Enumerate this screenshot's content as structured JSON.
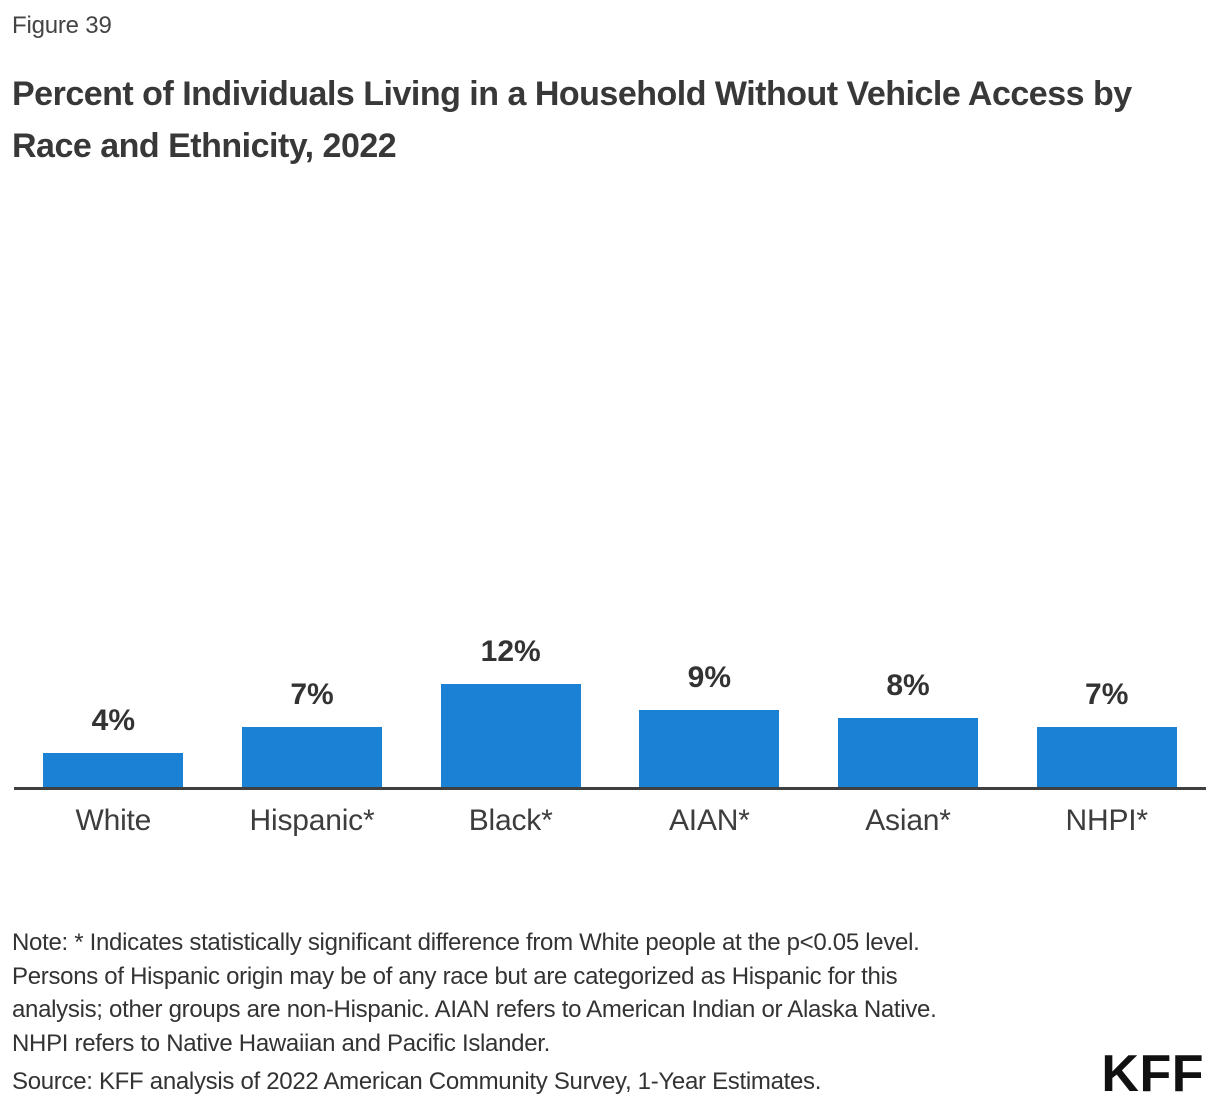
{
  "figure_label": "Figure 39",
  "title": "Percent of Individuals Living in a Household Without Vehicle Access by Race and Ethnicity, 2022",
  "chart_data": {
    "type": "bar",
    "categories": [
      "White",
      "Hispanic*",
      "Black*",
      "AIAN*",
      "Asian*",
      "NHPI*"
    ],
    "values": [
      4,
      7,
      12,
      9,
      8,
      7
    ],
    "value_labels": [
      "4%",
      "7%",
      "12%",
      "9%",
      "8%",
      "7%"
    ],
    "title": "Percent of Individuals Living in a Household Without Vehicle Access by Race and Ethnicity, 2022",
    "xlabel": "",
    "ylabel": "",
    "ylim": [
      0,
      14
    ],
    "grid": false,
    "legend": "none",
    "data_labels_shown": true,
    "bar_color": "#1b81d4",
    "axis_color": "#3f3f3f",
    "label_color": "#333333"
  },
  "note_lines": [
    "Note: * Indicates statistically significant difference from White people at the p<0.05 level.",
    "Persons of Hispanic origin may be of any race but are categorized as Hispanic for this",
    "analysis; other groups are non-Hispanic. AIAN refers to American Indian or Alaska Native.",
    "NHPI refers to Native Hawaiian and Pacific Islander."
  ],
  "source": "Source: KFF analysis of 2022 American Community Survey, 1-Year Estimates.",
  "logo_text": "KFF"
}
